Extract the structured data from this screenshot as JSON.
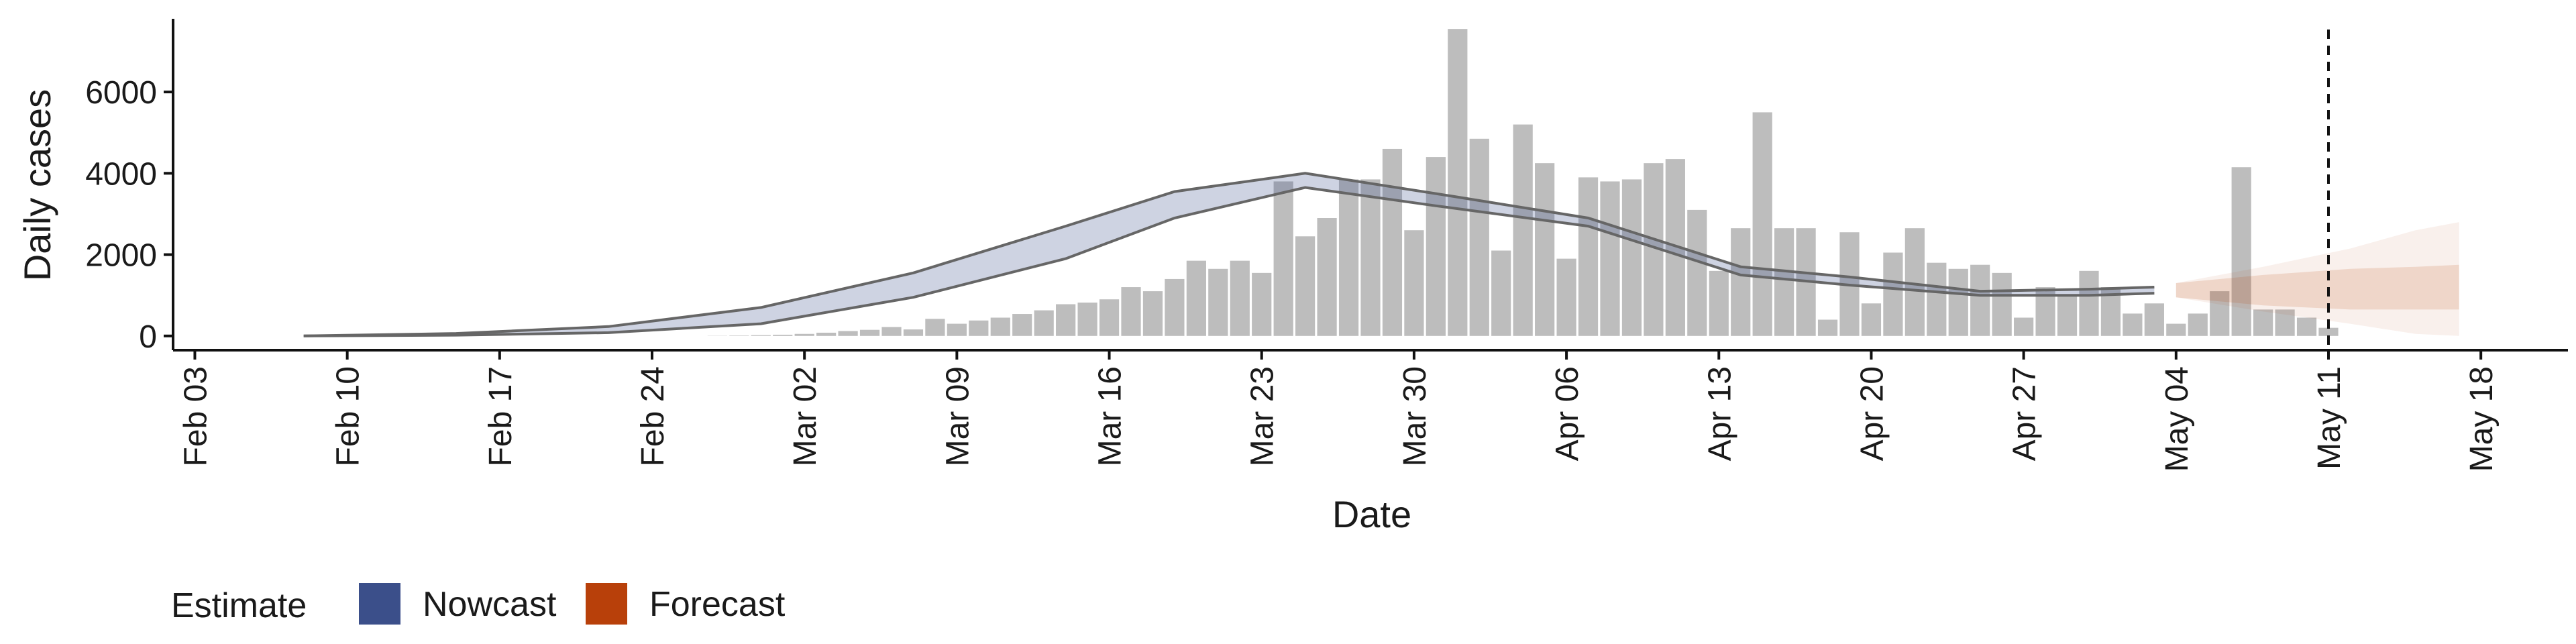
{
  "chart_data": {
    "type": "bar",
    "title": "",
    "xlabel": "Date",
    "ylabel": "Daily cases",
    "grid": false,
    "xlim": [
      "2020-02-02",
      "2020-05-22"
    ],
    "ylim": [
      -350,
      7800
    ],
    "x_ticks": [
      "Feb 03",
      "Feb 10",
      "Feb 17",
      "Feb 24",
      "Mar 02",
      "Mar 09",
      "Mar 16",
      "Mar 23",
      "Mar 30",
      "Apr 06",
      "Apr 13",
      "Apr 20",
      "Apr 27",
      "May 04",
      "May 11",
      "May 18"
    ],
    "x_tick_dates": [
      "2020-02-03",
      "2020-02-10",
      "2020-02-17",
      "2020-02-24",
      "2020-03-02",
      "2020-03-09",
      "2020-03-16",
      "2020-03-23",
      "2020-03-30",
      "2020-04-06",
      "2020-04-13",
      "2020-04-20",
      "2020-04-27",
      "2020-05-04",
      "2020-05-11",
      "2020-05-18"
    ],
    "y_ticks": [
      0,
      2000,
      4000,
      6000
    ],
    "reference_line": {
      "date": "2020-05-11",
      "style": "dashed"
    },
    "reported_cases": {
      "start_date": "2020-02-27",
      "values": [
        5,
        10,
        20,
        30,
        50,
        80,
        120,
        150,
        220,
        160,
        420,
        300,
        380,
        450,
        540,
        630,
        780,
        820,
        900,
        1200,
        1100,
        1400,
        1850,
        1650,
        1850,
        1550,
        3800,
        2450,
        2900,
        3850,
        3850,
        4600,
        2600,
        4400,
        7550,
        4850,
        2100,
        5200,
        4250,
        1900,
        3900,
        3800,
        3850,
        4250,
        4350,
        3100,
        1600,
        2650,
        5500,
        2650,
        2650,
        400,
        2550,
        800,
        2050,
        2650,
        1800,
        1650,
        1750,
        1550,
        450,
        1200,
        1000,
        1600,
        1200,
        550,
        800,
        300,
        550,
        1100,
        4150,
        650,
        650,
        450,
        200
      ]
    },
    "series": [
      {
        "name": "Nowcast",
        "color": "#3b4f8a",
        "x": [
          "2020-02-08",
          "2020-02-15",
          "2020-02-22",
          "2020-02-29",
          "2020-03-07",
          "2020-03-14",
          "2020-03-19",
          "2020-03-25",
          "2020-03-31",
          "2020-04-07",
          "2020-04-14",
          "2020-04-19",
          "2020-04-25",
          "2020-04-30",
          "2020-05-03"
        ],
        "lower": [
          0,
          20,
          80,
          300,
          950,
          1900,
          2900,
          3650,
          3200,
          2700,
          1500,
          1250,
          1000,
          1000,
          1050
        ],
        "upper": [
          0,
          60,
          230,
          700,
          1550,
          2700,
          3550,
          4000,
          3500,
          2900,
          1700,
          1450,
          1100,
          1150,
          1200
        ]
      },
      {
        "name": "Forecast",
        "color": "#b8400a",
        "x": [
          "2020-05-04",
          "2020-05-08",
          "2020-05-12",
          "2020-05-15",
          "2020-05-17"
        ],
        "lower_inner": [
          950,
          750,
          650,
          650,
          650
        ],
        "upper_inner": [
          1300,
          1500,
          1650,
          1700,
          1750
        ],
        "lower_outer": [
          950,
          600,
          300,
          50,
          0
        ],
        "upper_outer": [
          1300,
          1700,
          2150,
          2600,
          2800
        ]
      }
    ],
    "legend": {
      "title": "Estimate",
      "position": "bottom",
      "items": [
        {
          "label": "Nowcast",
          "color": "#3b4f8a"
        },
        {
          "label": "Forecast",
          "color": "#b8400a"
        }
      ]
    }
  }
}
